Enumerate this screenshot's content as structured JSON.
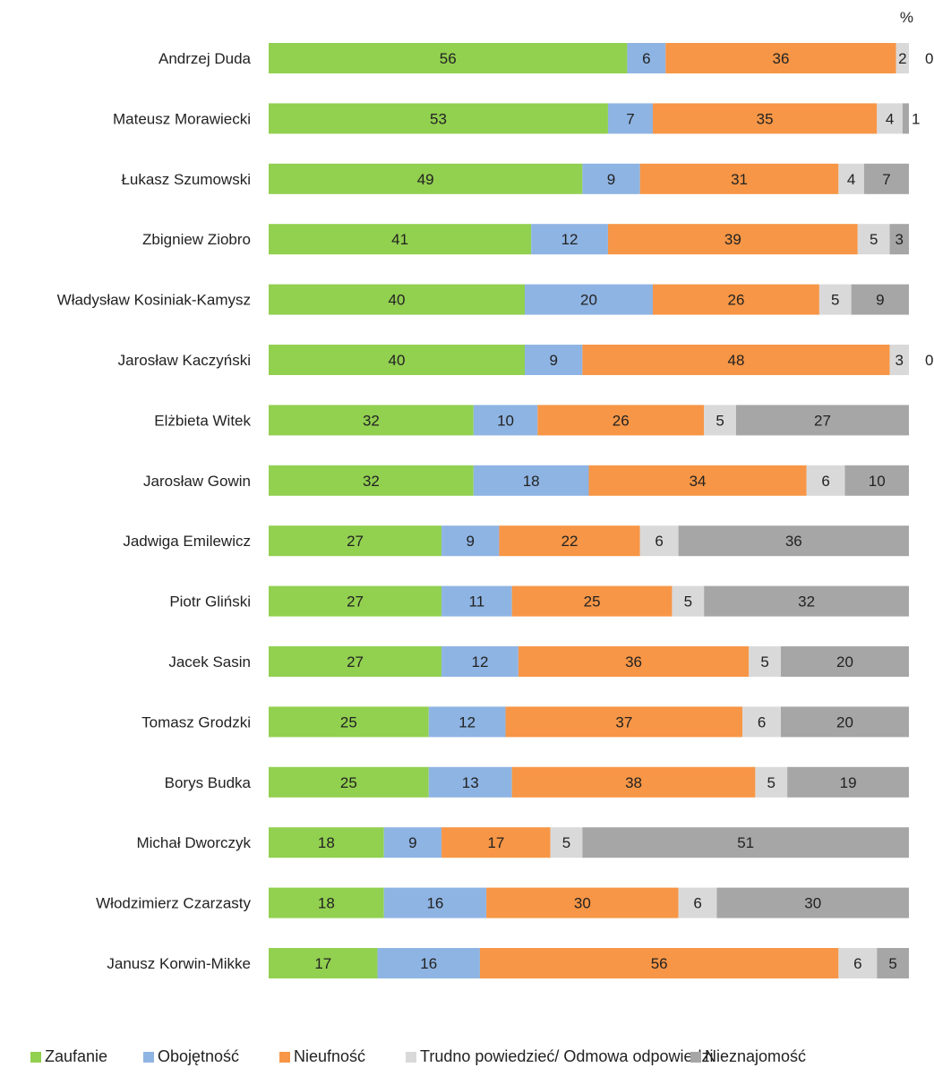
{
  "chart_data": {
    "type": "bar",
    "orientation": "horizontal",
    "stacked": true,
    "unit": "%",
    "categories": [
      "Andrzej Duda",
      "Mateusz Morawiecki",
      "Łukasz Szumowski",
      "Zbigniew Ziobro",
      "Władysław Kosiniak-Kamysz",
      "Jarosław Kaczyński",
      "Elżbieta Witek",
      "Jarosław Gowin",
      "Jadwiga Emilewicz",
      "Piotr Gliński",
      "Jacek Sasin",
      "Tomasz Grodzki",
      "Borys Budka",
      "Michał Dworczyk",
      "Włodzimierz Czarzasty",
      "Janusz Korwin-Mikke"
    ],
    "series": [
      {
        "name": "Zaufanie",
        "color": "#92d050",
        "values": [
          56,
          53,
          49,
          41,
          40,
          40,
          32,
          32,
          27,
          27,
          27,
          25,
          25,
          18,
          18,
          17
        ]
      },
      {
        "name": "Obojętność",
        "color": "#8eb4e3",
        "values": [
          6,
          7,
          9,
          12,
          20,
          9,
          10,
          18,
          9,
          11,
          12,
          12,
          13,
          9,
          16,
          16
        ]
      },
      {
        "name": "Nieufność",
        "color": "#f79646",
        "values": [
          36,
          35,
          31,
          39,
          26,
          48,
          26,
          34,
          22,
          25,
          36,
          37,
          38,
          17,
          30,
          56
        ]
      },
      {
        "name": "Trudno powiedzieć/ Odmowa odpowiedzi",
        "color": "#d9d9d9",
        "values": [
          2,
          4,
          4,
          5,
          5,
          3,
          5,
          6,
          6,
          5,
          5,
          6,
          5,
          5,
          6,
          6
        ]
      },
      {
        "name": "Nieznajomość",
        "color": "#a6a6a6",
        "values": [
          0,
          1,
          7,
          3,
          9,
          0,
          27,
          10,
          36,
          32,
          20,
          20,
          19,
          51,
          30,
          5
        ]
      }
    ],
    "xlim": [
      0,
      100
    ],
    "legend_position": "bottom",
    "grid": false
  }
}
